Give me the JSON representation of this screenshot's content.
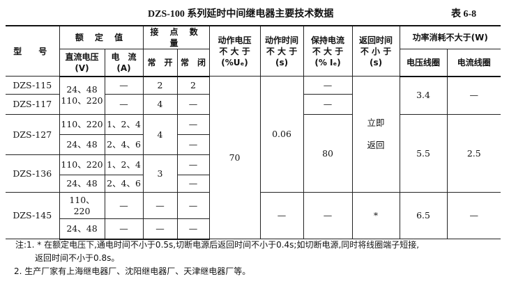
{
  "title": "DZS-100 系列延时中间继电器主要技术数据",
  "table_no": "表 6-8",
  "header": {
    "model": "型　号",
    "rated": "额 定 值",
    "dc_voltage": "直流电压",
    "dc_voltage_unit": "(V)",
    "current": "电　流",
    "current_unit": "(A)",
    "contacts": "接 点 数 量",
    "no": "常　开",
    "nc": "常　闭",
    "op_voltage": [
      "动作电压",
      "不 大 于",
      "(%Uₑ)"
    ],
    "op_time": [
      "动作时间",
      "不 大 于",
      "(s)"
    ],
    "hold_current": [
      "保持电流",
      "不 大 于",
      "(% Iₑ)"
    ],
    "return_time": [
      "返回时间",
      "不 小 于",
      "(s)"
    ],
    "power": "功率消耗不大于(W)",
    "voltage_coil": "电压线圈",
    "current_coil": "电流线圈"
  },
  "rows": {
    "m115": "DZS-115",
    "m117": "DZS-117",
    "m127": "DZS-127",
    "m136": "DZS-136",
    "m145": "DZS-145",
    "v12": [
      "24、48",
      "110、220"
    ],
    "v3": "110、220",
    "v4": "24、48",
    "v5": "110、220",
    "v6": "24、48",
    "v7": "110、\n220",
    "v8": "24、48",
    "c1": "—",
    "c2": "—",
    "c3": "1、2、4",
    "c4": "2、4、6",
    "c5": "1、2、4",
    "c6": "2、4、6",
    "c7": "—",
    "c8": "—",
    "no1": "2",
    "no2": "4",
    "no34": "4",
    "no56": "3",
    "no7": "—",
    "no8": "—",
    "nc1": "2",
    "nc2": "—",
    "nc3": "—",
    "nc4": "—",
    "nc5": "—",
    "nc6": "—",
    "nc7": "—",
    "nc8": "—",
    "opv": "70",
    "opt16": "0.06",
    "opt78": "—",
    "hc1": "—",
    "hc2": "—",
    "hc36": "80",
    "hc78": "—",
    "rt16": [
      "立即",
      "返回"
    ],
    "rt78": "*",
    "vc12": "3.4",
    "vc36": "5.5",
    "vc78": "6.5",
    "cc12": "—",
    "cc36": "2.5",
    "cc78": "—"
  },
  "notes": [
    "注:1. * 在额定电压下,通电时间不小于0.5s,切断电源后返回时间不小于0.4s;如切断电源,同时将线圈端子短接,",
    "返回时间不小于0.8s。",
    "2. 生产厂家有上海继电器厂、沈阳继电器厂、天津继电器厂等。"
  ]
}
